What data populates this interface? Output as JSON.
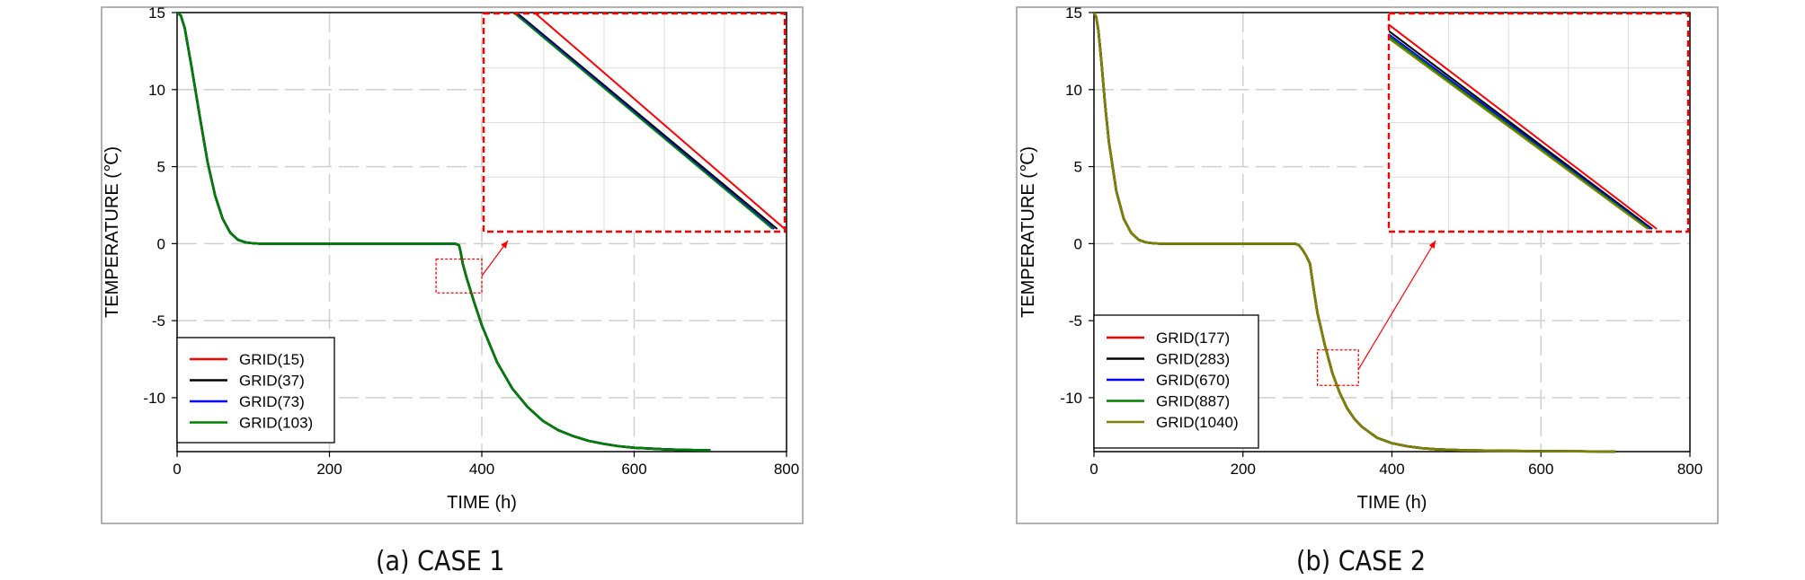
{
  "panels": [
    {
      "caption": "(a) CASE 1",
      "chart_data": {
        "type": "line",
        "xlabel": "TIME (h)",
        "ylabel": "TEMPERATURE (℃)",
        "xlim": [
          0,
          800
        ],
        "ylim": [
          -13.5,
          15
        ],
        "xticks": [
          0,
          200,
          400,
          600,
          800
        ],
        "yticks": [
          15,
          10,
          5,
          0,
          -5,
          -10
        ],
        "grid": true,
        "legend_position": "bottom-left",
        "series": [
          {
            "name": "GRID(15)",
            "color": "#ff0000"
          },
          {
            "name": "GRID(37)",
            "color": "#000000"
          },
          {
            "name": "GRID(73)",
            "color": "#0000ff"
          },
          {
            "name": "GRID(103)",
            "color": "#008000"
          }
        ],
        "curve": {
          "x": [
            0,
            5,
            10,
            20,
            30,
            40,
            50,
            60,
            70,
            80,
            90,
            100,
            110,
            120,
            200,
            300,
            365,
            370,
            372,
            375,
            380,
            390,
            400,
            420,
            440,
            460,
            480,
            500,
            520,
            540,
            560,
            580,
            600,
            620,
            640,
            660,
            680,
            700
          ],
          "y": [
            15,
            14.8,
            14,
            11.2,
            8.2,
            5.3,
            3.1,
            1.6,
            0.7,
            0.25,
            0.08,
            0.02,
            0,
            0,
            0,
            0,
            0,
            -0.1,
            -0.5,
            -1.3,
            -2.2,
            -3.8,
            -5.3,
            -7.7,
            -9.4,
            -10.6,
            -11.5,
            -12.1,
            -12.5,
            -12.8,
            -13,
            -13.15,
            -13.25,
            -13.3,
            -13.35,
            -13.38,
            -13.4,
            -13.42
          ]
        },
        "zoom_box": {
          "x": [
            340,
            400
          ],
          "y": [
            -3.2,
            -1.0
          ]
        },
        "inset": {
          "xlim": [
            0,
            1
          ],
          "ylim": [
            0,
            1
          ],
          "lines": [
            {
              "series": "GRID(15)",
              "x": [
                0.15,
                1.0
              ],
              "y": [
                1.04,
                0.0
              ]
            },
            {
              "series": "GRID(37)",
              "x": [
                0.09,
                0.975
              ],
              "y": [
                1.04,
                0.0
              ]
            },
            {
              "series": "GRID(73)",
              "x": [
                0.085,
                0.965
              ],
              "y": [
                1.04,
                0.0
              ]
            },
            {
              "series": "GRID(103)",
              "x": [
                0.08,
                0.96
              ],
              "y": [
                1.04,
                0.0
              ]
            }
          ]
        }
      }
    },
    {
      "caption": "(b) CASE 2",
      "chart_data": {
        "type": "line",
        "xlabel": "TIME (h)",
        "ylabel": "TEMPERATURE (℃)",
        "xlim": [
          0,
          800
        ],
        "ylim": [
          -13.5,
          15
        ],
        "xticks": [
          0,
          200,
          400,
          600,
          800
        ],
        "yticks": [
          15,
          10,
          5,
          0,
          -5,
          -10
        ],
        "grid": true,
        "legend_position": "bottom-left",
        "series": [
          {
            "name": "GRID(177)",
            "color": "#ff0000"
          },
          {
            "name": "GRID(283)",
            "color": "#000000"
          },
          {
            "name": "GRID(670)",
            "color": "#0000ff"
          },
          {
            "name": "GRID(887)",
            "color": "#008000"
          },
          {
            "name": "GRID(1040)",
            "color": "#808000"
          }
        ],
        "curve": {
          "x": [
            0,
            3,
            6,
            10,
            15,
            20,
            30,
            40,
            50,
            60,
            70,
            80,
            90,
            100,
            200,
            270,
            275,
            280,
            285,
            290,
            295,
            300,
            310,
            320,
            330,
            340,
            350,
            360,
            380,
            400,
            420,
            440,
            460,
            500,
            550,
            600,
            650,
            700
          ],
          "y": [
            15,
            14.7,
            13.8,
            11.8,
            9.0,
            6.6,
            3.4,
            1.6,
            0.7,
            0.25,
            0.08,
            0.02,
            0,
            0,
            0,
            0,
            -0.1,
            -0.4,
            -0.8,
            -1.3,
            -3.0,
            -4.5,
            -6.6,
            -8.4,
            -9.7,
            -10.7,
            -11.4,
            -11.9,
            -12.6,
            -12.95,
            -13.15,
            -13.28,
            -13.35,
            -13.42,
            -13.45,
            -13.47,
            -13.48,
            -13.5
          ]
        },
        "zoom_box": {
          "x": [
            300,
            355
          ],
          "y": [
            -9.2,
            -6.9
          ]
        },
        "inset": {
          "xlim": [
            0,
            1
          ],
          "ylim": [
            0,
            1
          ],
          "lines": [
            {
              "series": "GRID(177)",
              "x": [
                0.0,
                0.895
              ],
              "y": [
                0.96,
                0.0
              ]
            },
            {
              "series": "GRID(283)",
              "x": [
                0.0,
                0.88
              ],
              "y": [
                0.93,
                0.0
              ]
            },
            {
              "series": "GRID(670)",
              "x": [
                0.0,
                0.875
              ],
              "y": [
                0.915,
                0.0
              ]
            },
            {
              "series": "GRID(887)",
              "x": [
                0.0,
                0.87
              ],
              "y": [
                0.905,
                0.0
              ]
            },
            {
              "series": "GRID(1040)",
              "x": [
                0.0,
                0.865
              ],
              "y": [
                0.895,
                0.0
              ]
            }
          ]
        }
      }
    }
  ]
}
